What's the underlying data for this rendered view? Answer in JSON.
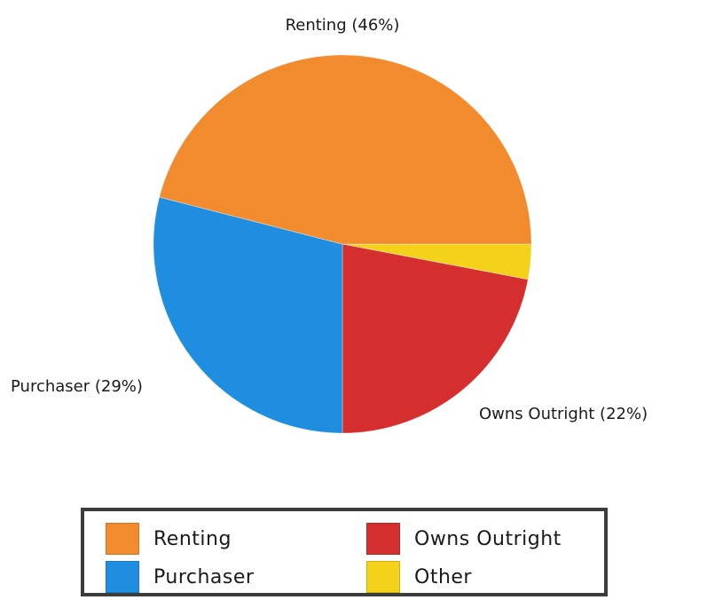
{
  "chart_data": {
    "type": "pie",
    "title": "",
    "slices": [
      {
        "label": "Renting",
        "value": 46,
        "color": "#f28a2e",
        "display_label": "Renting (46%)"
      },
      {
        "label": "Other",
        "value": 3,
        "color": "#f4d21a",
        "display_label": ""
      },
      {
        "label": "Owns Outright",
        "value": 22,
        "color": "#d42e2e",
        "display_label": "Owns Outright (22%)"
      },
      {
        "label": "Purchaser",
        "value": 29,
        "color": "#1f8ee0",
        "display_label": "Purchaser (29%)"
      }
    ],
    "legend": {
      "placement": "bottom",
      "entries": [
        {
          "label": "Renting",
          "color": "#f28a2e"
        },
        {
          "label": "Owns Outright",
          "color": "#d42e2e"
        },
        {
          "label": "Purchaser",
          "color": "#1f8ee0"
        },
        {
          "label": "Other",
          "color": "#f4d21a"
        }
      ]
    }
  }
}
